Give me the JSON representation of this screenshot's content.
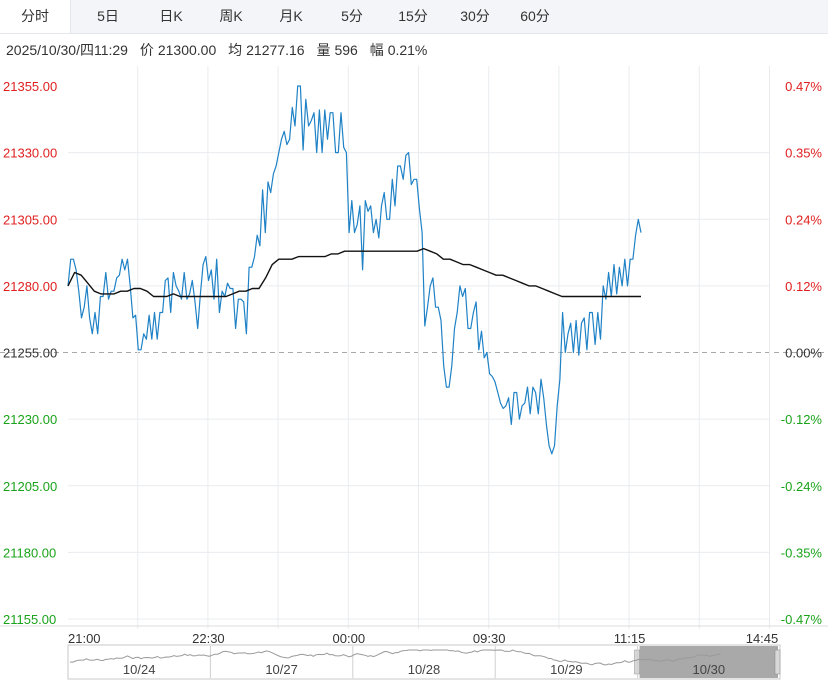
{
  "tabs": [
    {
      "label": "分时",
      "active": true
    },
    {
      "label": "5日",
      "active": false
    },
    {
      "label": "日K",
      "active": false
    },
    {
      "label": "周K",
      "active": false
    },
    {
      "label": "月K",
      "active": false
    },
    {
      "label": "5分",
      "active": false
    },
    {
      "label": "15分",
      "active": false
    },
    {
      "label": "30分",
      "active": false
    },
    {
      "label": "60分",
      "active": false
    }
  ],
  "info": {
    "datetime": "2025/10/30/四11:29",
    "price_label": "价",
    "price": "21300.00",
    "avg_label": "均",
    "avg": "21277.16",
    "vol_label": "量",
    "vol": "596",
    "amp_label": "幅",
    "amp": "0.21%"
  },
  "colors": {
    "price_line": "#1f82c6",
    "avg_line": "#111111",
    "up": "#e02020",
    "down": "#1aa31a",
    "neutral": "#333333",
    "grid": "#e9ecef",
    "base_line": "#aaaaaa",
    "nav_selected": "#a0a0a0"
  },
  "chart_data": {
    "type": "line",
    "ylim": [
      21155,
      21355
    ],
    "base": 21255,
    "y_ticks": [
      "21355.00",
      "21330.00",
      "21305.00",
      "21280.00",
      "21255.00",
      "21230.00",
      "21205.00",
      "21180.00",
      "21155.00"
    ],
    "pct_ticks": [
      "0.47%",
      "0.35%",
      "0.24%",
      "0.12%",
      "0.00%",
      "-0.12%",
      "-0.24%",
      "-0.35%",
      "-0.47%"
    ],
    "x_ticks": [
      "21:00",
      "22:30",
      "00:00",
      "09:30",
      "11:15",
      "14:45"
    ],
    "series": [
      {
        "role": "price",
        "values": [
          21280,
          21290,
          21290,
          21286,
          21278,
          21268,
          21272,
          21280,
          21268,
          21262,
          21270,
          21262,
          21276,
          21276,
          21285,
          21275,
          21278,
          21278,
          21283,
          21284,
          21290,
          21286,
          21290,
          21280,
          21268,
          21269,
          21256,
          21256,
          21262,
          21260,
          21269,
          21260,
          21270,
          21260,
          21270,
          21270,
          21282,
          21283,
          21270,
          21285,
          21280,
          21278,
          21275,
          21285,
          21275,
          21277,
          21282,
          21274,
          21264,
          21277,
          21288,
          21291,
          21282,
          21286,
          21275,
          21290,
          21270,
          21278,
          21276,
          21281,
          21279,
          21279,
          21264,
          21275,
          21275,
          21274,
          21262,
          21287,
          21287,
          21291,
          21299,
          21295,
          21316,
          21300,
          21319,
          21315,
          21322,
          21325,
          21330,
          21335,
          21338,
          21333,
          21335,
          21347,
          21340,
          21355,
          21355,
          21331,
          21350,
          21340,
          21342,
          21345,
          21330,
          21346,
          21330,
          21346,
          21335,
          21345,
          21345,
          21330,
          21330,
          21345,
          21332,
          21330,
          21300,
          21312,
          21300,
          21303,
          21310,
          21286,
          21312,
          21308,
          21310,
          21300,
          21305,
          21298,
          21310,
          21315,
          21305,
          21305,
          21320,
          21310,
          21325,
          21325,
          21320,
          21329,
          21330,
          21318,
          21320,
          21320,
          21309,
          21300,
          21265,
          21272,
          21280,
          21283,
          21272,
          21272,
          21267,
          21250,
          21242,
          21242,
          21250,
          21264,
          21270,
          21280,
          21276,
          21279,
          21264,
          21264,
          21270,
          21274,
          21256,
          21263,
          21253,
          21255,
          21247,
          21246,
          21244,
          21240,
          21236,
          21234,
          21235,
          21238,
          21228,
          21240,
          21240,
          21230,
          21235,
          21236,
          21242,
          21232,
          21242,
          21240,
          21232,
          21245,
          21238,
          21228,
          21220,
          21217,
          21220,
          21235,
          21245,
          21270,
          21255,
          21262,
          21266,
          21255,
          21267,
          21254,
          21266,
          21268,
          21256,
          21270,
          21270,
          21258,
          21270,
          21260,
          21280,
          21275,
          21285,
          21276,
          21288,
          21277,
          21287,
          21280,
          21290,
          21280,
          21290,
          21290,
          21299,
          21305,
          21300
        ],
        "x_range": [
          21.0,
          11.4833
        ]
      },
      {
        "role": "average",
        "values": [
          21280,
          21285,
          21284,
          21281,
          21278,
          21277,
          21277,
          21277,
          21278,
          21278,
          21279,
          21279,
          21278,
          21276,
          21276,
          21276,
          21277,
          21276,
          21276,
          21276,
          21276,
          21276,
          21276,
          21276,
          21276,
          21277,
          21278,
          21278,
          21279,
          21279,
          21283,
          21288,
          21290,
          21290,
          21290,
          21291,
          21291,
          21291,
          21291,
          21291,
          21292,
          21292,
          21293,
          21293,
          21293,
          21293,
          21293,
          21293,
          21293,
          21293,
          21293,
          21293,
          21293,
          21293,
          21294,
          21293,
          21292,
          21290,
          21290,
          21289,
          21288,
          21288,
          21287,
          21286,
          21285,
          21284,
          21284,
          21283,
          21282,
          21281,
          21280,
          21280,
          21279,
          21278,
          21277,
          21276,
          21276,
          21276,
          21276,
          21276,
          21276,
          21276,
          21276,
          21276,
          21276,
          21276,
          21276,
          21276
        ],
        "x_range": [
          21.0,
          11.4833
        ]
      }
    ]
  },
  "navigator": {
    "labels": [
      "10/24",
      "10/27",
      "10/28",
      "10/29",
      "10/30"
    ]
  }
}
